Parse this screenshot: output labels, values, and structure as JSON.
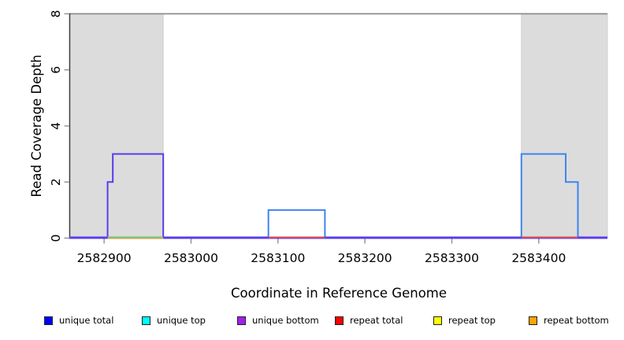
{
  "chart_data": {
    "type": "line",
    "subtype": "step-coverage",
    "title": "",
    "xlabel": "Coordinate in Reference Genome",
    "ylabel": "Read Coverage Depth",
    "xlim": [
      2582860,
      2583479
    ],
    "ylim": [
      0,
      8
    ],
    "x_ticks": [
      2582900,
      2583000,
      2583100,
      2583200,
      2583300,
      2583400
    ],
    "y_ticks": [
      0,
      2,
      4,
      6,
      8
    ],
    "grid": false,
    "legend_position": "bottom",
    "shaded_regions": [
      {
        "start": 2582860,
        "end": 2582968,
        "fill": "#dcdcdc",
        "stroke": "#c6c6c6"
      },
      {
        "start": 2583380,
        "end": 2583479,
        "fill": "#dcdcdc",
        "stroke": "#c6c6c6"
      }
    ],
    "top_rule": {
      "y": 8,
      "color": "#8c8c8c"
    },
    "series": [
      {
        "name": "unique coverage, top strand (blue over cyan)",
        "render_color": "#3e84f2",
        "steps": [
          [
            2582860,
            0
          ],
          [
            2583089,
            1
          ],
          [
            2583154,
            0
          ],
          [
            2583380,
            3
          ],
          [
            2583431,
            2
          ],
          [
            2583445,
            0
          ],
          [
            2583479,
            0
          ]
        ]
      },
      {
        "name": "unique coverage, bottom strand (blue over purple)",
        "render_color": "#5a3cec",
        "steps": [
          [
            2582860,
            0
          ],
          [
            2582904,
            2
          ],
          [
            2582910,
            3
          ],
          [
            2582968,
            0
          ],
          [
            2583479,
            0
          ]
        ]
      }
    ],
    "baseline_segments": [
      {
        "start": 2582860,
        "end": 2582904,
        "color": "#5a3cec"
      },
      {
        "start": 2582904,
        "end": 2582968,
        "color": "#74c674",
        "under_color": "#f0a868"
      },
      {
        "start": 2582968,
        "end": 2583089,
        "color": "#5a3cec"
      },
      {
        "start": 2583089,
        "end": 2583154,
        "color": "#dd4f55"
      },
      {
        "start": 2583154,
        "end": 2583380,
        "color": "#5a3cec"
      },
      {
        "start": 2583380,
        "end": 2583445,
        "color": "#dd4f55"
      },
      {
        "start": 2583445,
        "end": 2583479,
        "color": "#5a3cec"
      }
    ],
    "axis_colors": {
      "y_axis_line": "#3a3a3a",
      "tick_marks": "#909090",
      "labels": "#000000"
    }
  },
  "legend": {
    "items": [
      {
        "label": "unique total",
        "color": "#0000ff"
      },
      {
        "label": "unique top",
        "color": "#00ffff"
      },
      {
        "label": "unique bottom",
        "color": "#a020f0"
      },
      {
        "label": "repeat total",
        "color": "#ff0000"
      },
      {
        "label": "repeat top",
        "color": "#ffff00"
      },
      {
        "label": "repeat bottom",
        "color": "#ffa500"
      }
    ]
  }
}
